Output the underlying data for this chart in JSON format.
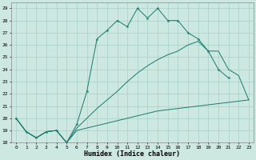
{
  "xlabel": "Humidex (Indice chaleur)",
  "xlim": [
    -0.5,
    23.5
  ],
  "ylim": [
    18,
    29.5
  ],
  "yticks": [
    18,
    19,
    20,
    21,
    22,
    23,
    24,
    25,
    26,
    27,
    28,
    29
  ],
  "xticks": [
    0,
    1,
    2,
    3,
    4,
    5,
    6,
    7,
    8,
    9,
    10,
    11,
    12,
    13,
    14,
    15,
    16,
    17,
    18,
    19,
    20,
    21,
    22,
    23
  ],
  "bg_color": "#cce8e0",
  "line_color": "#1a7a6e",
  "line1": {
    "x": [
      0,
      1,
      2,
      3,
      4,
      5,
      6,
      7,
      8,
      9,
      10,
      11,
      12,
      13,
      14,
      15,
      16,
      17,
      18,
      19,
      20,
      21
    ],
    "y": [
      20,
      18.9,
      18.4,
      18.9,
      19.0,
      18.0,
      19.5,
      22.2,
      26.5,
      27.2,
      28.0,
      27.5,
      29.0,
      28.2,
      29.0,
      28.0,
      28.0,
      27.0,
      26.5,
      25.5,
      24.0,
      23.3
    ]
  },
  "line2": {
    "x": [
      0,
      1,
      2,
      3,
      4,
      5,
      6,
      7,
      8,
      9,
      10,
      11,
      12,
      13,
      14,
      15,
      16,
      17,
      18,
      19,
      20,
      21,
      22,
      23
    ],
    "y": [
      20,
      18.9,
      18.4,
      18.9,
      19.0,
      18.0,
      19.2,
      20.0,
      20.8,
      21.5,
      22.2,
      23.0,
      23.7,
      24.3,
      24.8,
      25.2,
      25.5,
      26.0,
      26.3,
      25.5,
      25.5,
      24.0,
      23.5,
      21.5
    ]
  },
  "line3": {
    "x": [
      0,
      1,
      2,
      3,
      4,
      5,
      6,
      7,
      8,
      9,
      10,
      11,
      12,
      13,
      14,
      15,
      16,
      17,
      18,
      19,
      20,
      21,
      22,
      23
    ],
    "y": [
      20,
      18.9,
      18.4,
      18.9,
      19.0,
      18.0,
      19.0,
      19.2,
      19.4,
      19.6,
      19.8,
      20.0,
      20.2,
      20.4,
      20.6,
      20.7,
      20.8,
      20.9,
      21.0,
      21.1,
      21.2,
      21.3,
      21.4,
      21.5
    ]
  }
}
